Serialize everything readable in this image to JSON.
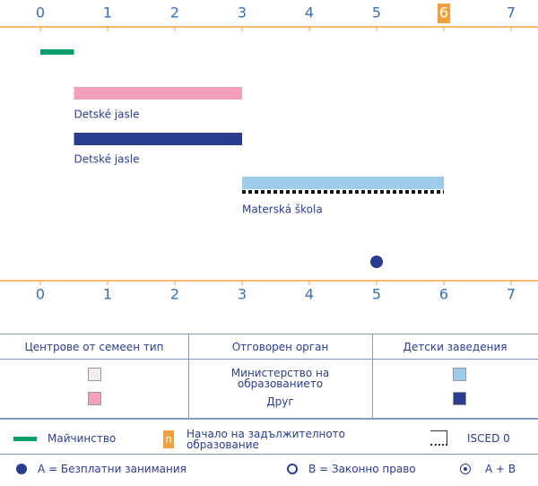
{
  "axis": {
    "ticks": [
      0,
      1,
      2,
      3,
      4,
      5,
      6,
      7
    ],
    "lim": [
      0,
      7
    ],
    "compulsory_start": 6,
    "color": "#f0a040"
  },
  "bars": [
    {
      "start": 0,
      "end": 0.5,
      "color": "#00a06a"
    },
    {
      "start": 0.5,
      "end": 3,
      "color": "#f0a0b8",
      "label": "Detské jasle"
    },
    {
      "start": 0.5,
      "end": 3,
      "color": "#2b3d8f",
      "label": "Detské jasle"
    },
    {
      "start": 3,
      "end": 6,
      "color": "#9dcbea",
      "label": "Materská škola"
    }
  ],
  "isced0": {
    "start": 3,
    "end": 6
  },
  "dot": {
    "age": 5,
    "color": "#2b3d8f"
  },
  "table": {
    "headers": [
      "Центрове от семеен тип",
      "Отговорен орган",
      "Детски заведения"
    ],
    "rows": [
      {
        "family_color": "#f3ecef",
        "body": "Министерство на образованието",
        "institution_color": "#9dcbea"
      },
      {
        "family_color": "#f0a0b8",
        "body": "Друг",
        "institution_color": "#2b3d8f"
      }
    ]
  },
  "legend": {
    "maternity": "Майчинство",
    "compulsory_mark": "n",
    "compulsory": "Начало на задължителното образование",
    "isced": "ISCED 0",
    "a": "A = Безплатни занимания",
    "b": "B = Законно право",
    "ab": "A + B"
  }
}
